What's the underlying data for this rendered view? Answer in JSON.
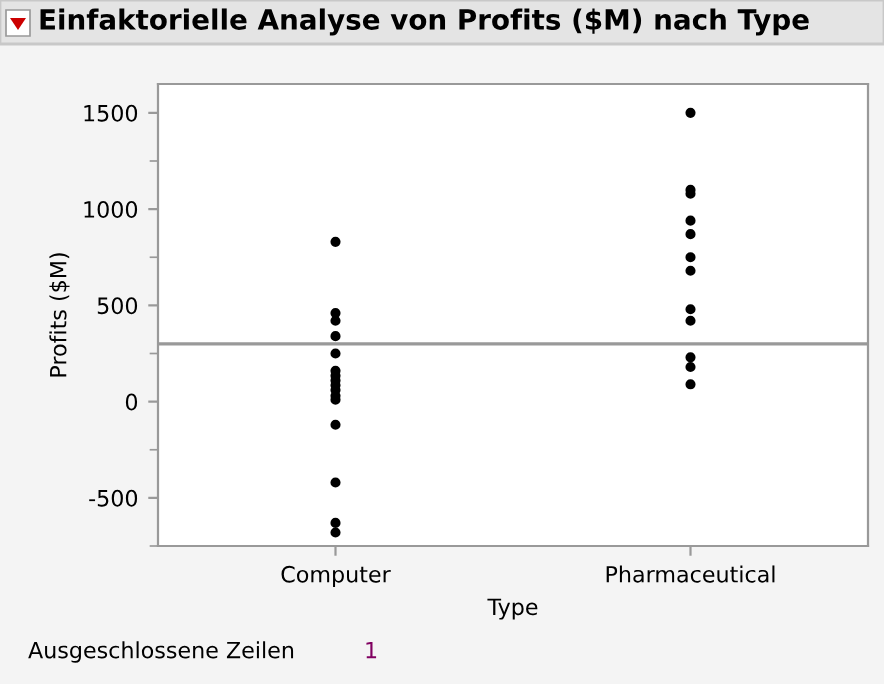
{
  "chart_data": {
    "type": "scatter",
    "title": "Einfaktorielle Analyse von Profits ($M) nach Type",
    "xlabel": "Type",
    "ylabel": "Profits ($M)",
    "categories": [
      "Computer",
      "Pharmaceutical"
    ],
    "series": [
      {
        "color": "#000000",
        "x": [
          "Computer",
          "Computer",
          "Computer",
          "Computer",
          "Computer",
          "Computer",
          "Computer",
          "Computer",
          "Computer",
          "Computer",
          "Computer",
          "Computer",
          "Computer",
          "Computer",
          "Computer",
          "Computer"
        ],
        "values": [
          830,
          460,
          420,
          340,
          250,
          160,
          135,
          110,
          85,
          60,
          30,
          10,
          -120,
          -420,
          -630,
          -680
        ]
      },
      {
        "color": "#000000",
        "x": [
          "Pharmaceutical",
          "Pharmaceutical",
          "Pharmaceutical",
          "Pharmaceutical",
          "Pharmaceutical",
          "Pharmaceutical",
          "Pharmaceutical",
          "Pharmaceutical",
          "Pharmaceutical",
          "Pharmaceutical",
          "Pharmaceutical",
          "Pharmaceutical"
        ],
        "values": [
          1500,
          1100,
          1080,
          940,
          870,
          750,
          680,
          480,
          420,
          230,
          180,
          90
        ]
      }
    ],
    "ylim": [
      -750,
      1650
    ],
    "yticks": [
      -500,
      0,
      500,
      1000,
      1500
    ],
    "ref_lines": [
      {
        "axis": "y",
        "value": 300,
        "color": "#999999"
      }
    ],
    "marker": "circle",
    "grid": false,
    "legend": false,
    "annotations": [
      "Ausgeschlossene Zeilen",
      "1"
    ]
  }
}
